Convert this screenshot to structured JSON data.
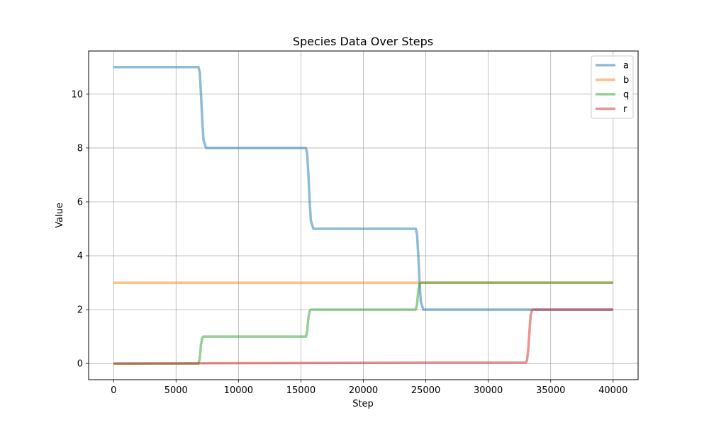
{
  "chart_data": {
    "type": "line",
    "title": "Species Data Over Steps",
    "xlabel": "Step",
    "ylabel": "Value",
    "xlim": [
      -2000,
      42000
    ],
    "ylim": [
      -0.6,
      11.6
    ],
    "xticks": [
      0,
      5000,
      10000,
      15000,
      20000,
      25000,
      30000,
      35000,
      40000
    ],
    "yticks": [
      0,
      2,
      4,
      6,
      8,
      10
    ],
    "grid": true,
    "legend_position": "top-right",
    "series": [
      {
        "name": "a",
        "color": "#1f77b4",
        "x": [
          0,
          6800,
          6900,
          7000,
          7100,
          7200,
          7400,
          15400,
          15500,
          15600,
          15700,
          15800,
          16000,
          24200,
          24300,
          24400,
          24500,
          24600,
          24800,
          40000
        ],
        "y": [
          11,
          11,
          10.8,
          10.0,
          9.0,
          8.3,
          8,
          8,
          7.8,
          7.0,
          6.0,
          5.3,
          5,
          5,
          4.8,
          4.0,
          3.0,
          2.3,
          2,
          2
        ]
      },
      {
        "name": "b",
        "color": "#ff7f0e",
        "x": [
          0,
          40000
        ],
        "y": [
          3,
          3
        ]
      },
      {
        "name": "q",
        "color": "#2ca02c",
        "x": [
          0,
          6800,
          6900,
          7000,
          7100,
          7200,
          15400,
          15500,
          15600,
          15700,
          15800,
          24200,
          24300,
          24400,
          24500,
          24600,
          40000
        ],
        "y": [
          0,
          0,
          0.2,
          0.7,
          0.95,
          1,
          1,
          1.2,
          1.7,
          1.95,
          2,
          2,
          2.2,
          2.7,
          2.95,
          3,
          3
        ]
      },
      {
        "name": "r",
        "color": "#d62728",
        "x": [
          0,
          7000,
          16000,
          25000,
          33000,
          33100,
          33200,
          33300,
          33400,
          33500,
          33600,
          40000
        ],
        "y": [
          0,
          0.01,
          0.02,
          0.03,
          0.03,
          0.1,
          0.5,
          1.2,
          1.8,
          1.97,
          2,
          2
        ]
      }
    ]
  }
}
